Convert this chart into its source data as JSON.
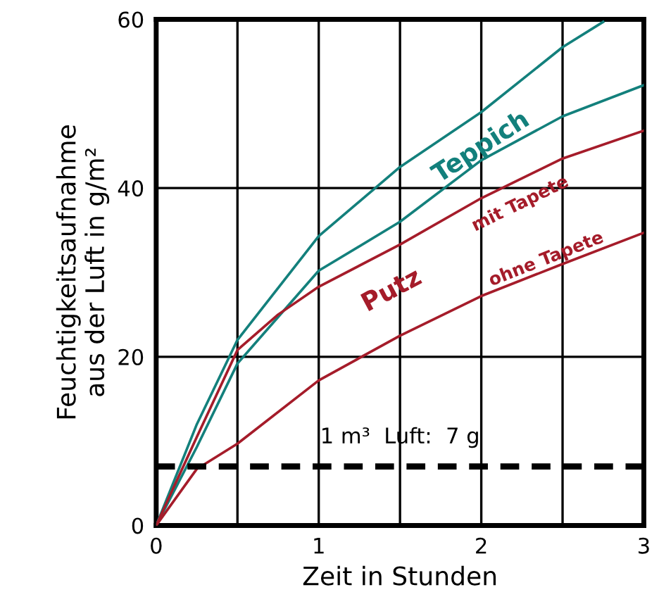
{
  "chart_data": {
    "type": "line",
    "xlabel": "Zeit in Stunden",
    "ylabel": "Feuchtigkeitsaufnahme\naus der Luft in g/m²",
    "xlim": [
      0,
      3
    ],
    "ylim": [
      0,
      60
    ],
    "xticks": [
      0,
      1,
      2,
      3
    ],
    "yticks": [
      0,
      20,
      40,
      60
    ],
    "grid": true,
    "marker": "none",
    "line_style": "solid",
    "series": [
      {
        "color": "#13807c",
        "x": [
          0,
          0.25,
          0.5,
          1,
          1.5,
          2,
          2.5,
          2.75
        ],
        "values": [
          0,
          12,
          22,
          34.3,
          42.5,
          49,
          56.7,
          59.7
        ]
      },
      {
        "color": "#13807c",
        "x": [
          0,
          0.25,
          0.5,
          1,
          1.5,
          2,
          2.5,
          3
        ],
        "values": [
          0,
          9.3,
          19.2,
          30.2,
          36,
          43.3,
          48.5,
          52.2
        ]
      },
      {
        "color": "#a51c2a",
        "x": [
          0,
          0.25,
          0.5,
          0.75,
          1,
          1.5,
          2,
          2.5,
          3
        ],
        "values": [
          0,
          10.5,
          20.8,
          25,
          28.3,
          33.3,
          38.8,
          43.5,
          46.8
        ]
      },
      {
        "color": "#a51c2a",
        "x": [
          0,
          0.25,
          0.5,
          1,
          1.5,
          2,
          2.5,
          3
        ],
        "values": [
          0,
          6.7,
          9.7,
          17.2,
          22.5,
          27.2,
          31,
          34.7
        ]
      }
    ],
    "ref_lines": [
      {
        "axis": "y",
        "value": 7,
        "label": "1 m³  Luft:  7 g",
        "color": "#000000",
        "line_style": "dashed"
      }
    ],
    "annotations": [
      {
        "text": "Teppich",
        "x": 2.0,
        "y": 43.3
      },
      {
        "text": "Putz",
        "x": 1.45,
        "y": 32.8
      },
      {
        "text": "mit Tapete",
        "x": 2.24,
        "y": 41.1
      },
      {
        "text": "ohne Tapete",
        "x": 2.4,
        "y": 30.2
      }
    ]
  }
}
